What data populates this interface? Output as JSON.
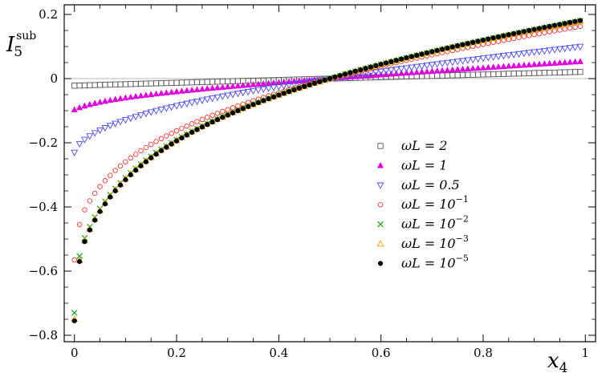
{
  "chart_data": {
    "type": "scatter",
    "xlabel": "x",
    "xlabel_sub": "4",
    "ylabel": "I",
    "ylabel_sub": "5",
    "ylabel_sup": "sub",
    "xlim": [
      -0.02,
      1.02
    ],
    "ylim": [
      -0.82,
      0.23
    ],
    "x_ticks": [
      0,
      0.2,
      0.4,
      0.6,
      0.8,
      1
    ],
    "x_tick_labels": [
      "0",
      "0.2",
      "0.4",
      "0.6",
      "0.8",
      "1"
    ],
    "y_ticks": [
      -0.8,
      -0.6,
      -0.4,
      -0.2,
      0,
      0.2
    ],
    "y_tick_labels": [
      "−0.8",
      "−0.6",
      "−0.4",
      "−0.2",
      "0",
      "0.2"
    ],
    "reference_line_y": 0,
    "grid": false,
    "legend_position": "center-right",
    "x_range": [
      0.0,
      0.99
    ],
    "x_step": 0.01,
    "series": [
      {
        "name": "ωL = 2",
        "legend_label": "ωL = 2",
        "marker": "square-open",
        "color": "#555555",
        "y_at_x": [
          [
            0,
            -0.022
          ],
          [
            0.5,
            0.0
          ],
          [
            0.99,
            0.021
          ]
        ]
      },
      {
        "name": "ωL = 1",
        "legend_label": "ωL = 1",
        "marker": "triangle-up-filled",
        "color": "#e000e0",
        "y_at_x": [
          [
            0,
            -0.097
          ],
          [
            0.5,
            0.0
          ],
          [
            0.99,
            0.053
          ]
        ]
      },
      {
        "name": "ωL = 0.5",
        "legend_label": "ωL = 0.5",
        "marker": "triangle-down-open",
        "color": "#4a4aff",
        "y_at_x": [
          [
            0,
            -0.23
          ],
          [
            0.01,
            -0.203
          ],
          [
            0.5,
            0.0
          ],
          [
            0.99,
            0.1
          ]
        ]
      },
      {
        "name": "ωL = 10^-1",
        "legend_label": "ωL = 10",
        "legend_exp": "−1",
        "marker": "circle-open",
        "color": "#ff3333",
        "y_at_x": [
          [
            0,
            -0.565
          ],
          [
            0.01,
            -0.455
          ],
          [
            0.02,
            -0.409
          ],
          [
            0.5,
            0.0
          ],
          [
            0.99,
            0.163
          ]
        ]
      },
      {
        "name": "ωL = 10^-2",
        "legend_label": "ωL = 10",
        "legend_exp": "−2",
        "marker": "x-cross",
        "color": "#00aa00",
        "y_at_x": [
          [
            0,
            -0.73
          ],
          [
            0.01,
            -0.553
          ],
          [
            0.02,
            -0.497
          ],
          [
            0.5,
            0.0
          ],
          [
            0.99,
            0.18
          ]
        ]
      },
      {
        "name": "ωL = 10^-3",
        "legend_label": "ωL = 10",
        "legend_exp": "−3",
        "marker": "triangle-up-open",
        "color": "#ff9900",
        "y_at_x": [
          [
            0,
            -0.75
          ],
          [
            0.01,
            -0.567
          ],
          [
            0.02,
            -0.505
          ],
          [
            0.5,
            0.0
          ],
          [
            0.99,
            0.179
          ]
        ]
      },
      {
        "name": "ωL = 10^-5",
        "legend_label": "ωL = 10",
        "legend_exp": "−5",
        "marker": "circle-filled",
        "color": "#000000",
        "y_at_x": [
          [
            0,
            -0.755
          ],
          [
            0.01,
            -0.57
          ],
          [
            0.02,
            -0.508
          ],
          [
            0.5,
            0.0
          ],
          [
            0.99,
            0.181
          ]
        ]
      }
    ]
  }
}
